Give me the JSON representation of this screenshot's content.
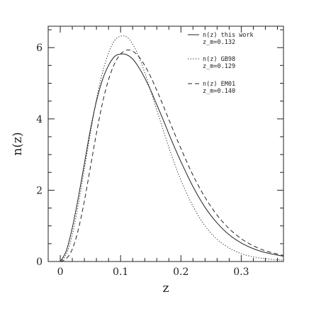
{
  "chart_data": {
    "type": "line",
    "xlabel": "z",
    "ylabel": "n(z)",
    "xlim": [
      -0.02,
      0.37
    ],
    "ylim": [
      0,
      6.6
    ],
    "xticks": [
      0,
      0.1,
      0.2,
      0.3
    ],
    "xtick_labels": [
      "0",
      "0.1",
      "0.2",
      "0.3"
    ],
    "yticks": [
      0,
      2,
      4,
      6
    ],
    "ytick_labels": [
      "0",
      "2",
      "4",
      "6"
    ],
    "legend_position": "top-right",
    "series": [
      {
        "name": "n(z) this work",
        "note": "z_m=0.132",
        "style": "solid",
        "x": [
          0.0,
          0.01,
          0.02,
          0.03,
          0.04,
          0.05,
          0.06,
          0.07,
          0.08,
          0.09,
          0.1,
          0.11,
          0.12,
          0.13,
          0.14,
          0.15,
          0.16,
          0.17,
          0.18,
          0.19,
          0.2,
          0.22,
          0.24,
          0.26,
          0.28,
          0.3,
          0.32,
          0.34,
          0.36,
          0.37
        ],
        "y": [
          0.0,
          0.3,
          0.95,
          1.8,
          2.75,
          3.7,
          4.5,
          5.1,
          5.5,
          5.75,
          5.82,
          5.8,
          5.68,
          5.45,
          5.15,
          4.8,
          4.4,
          4.0,
          3.58,
          3.18,
          2.8,
          2.1,
          1.52,
          1.08,
          0.75,
          0.52,
          0.36,
          0.25,
          0.18,
          0.15
        ]
      },
      {
        "name": "n(z) GB98",
        "note": "z_m=0.129",
        "style": "dotted",
        "x": [
          0.0,
          0.01,
          0.02,
          0.03,
          0.04,
          0.05,
          0.06,
          0.07,
          0.08,
          0.09,
          0.1,
          0.11,
          0.12,
          0.13,
          0.14,
          0.15,
          0.16,
          0.17,
          0.18,
          0.19,
          0.2,
          0.22,
          0.24,
          0.26,
          0.28,
          0.3,
          0.32,
          0.34,
          0.36,
          0.37
        ],
        "y": [
          0.0,
          0.2,
          0.75,
          1.6,
          2.6,
          3.6,
          4.55,
          5.3,
          5.85,
          6.2,
          6.32,
          6.3,
          6.1,
          5.75,
          5.3,
          4.78,
          4.25,
          3.72,
          3.2,
          2.72,
          2.28,
          1.55,
          1.0,
          0.62,
          0.38,
          0.22,
          0.13,
          0.08,
          0.05,
          0.04
        ]
      },
      {
        "name": "n(z) EM01",
        "note": "z_m=0.140",
        "style": "dashed",
        "x": [
          0.0,
          0.01,
          0.02,
          0.03,
          0.04,
          0.05,
          0.06,
          0.07,
          0.08,
          0.09,
          0.1,
          0.11,
          0.12,
          0.13,
          0.14,
          0.15,
          0.16,
          0.17,
          0.18,
          0.19,
          0.2,
          0.22,
          0.24,
          0.26,
          0.28,
          0.3,
          0.32,
          0.34,
          0.36,
          0.37
        ],
        "y": [
          0.0,
          0.08,
          0.35,
          0.9,
          1.7,
          2.65,
          3.6,
          4.45,
          5.1,
          5.55,
          5.82,
          5.93,
          5.9,
          5.75,
          5.5,
          5.18,
          4.8,
          4.4,
          3.98,
          3.57,
          3.17,
          2.42,
          1.8,
          1.3,
          0.92,
          0.64,
          0.44,
          0.3,
          0.21,
          0.17
        ]
      }
    ]
  }
}
